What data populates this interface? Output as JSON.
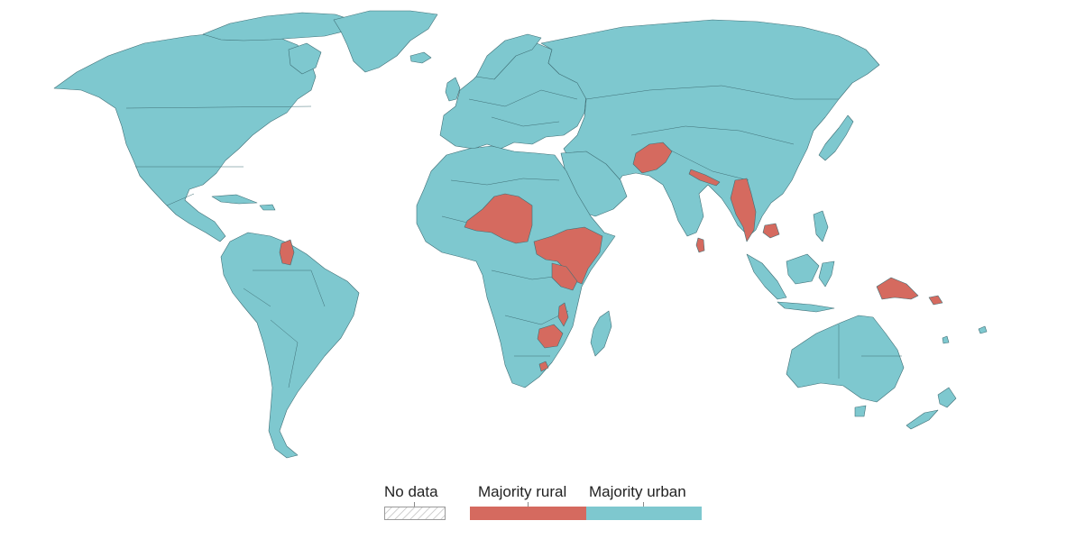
{
  "colors": {
    "majority_urban": "#7ec8cf",
    "majority_rural": "#d56a5f",
    "no_data": "hatched",
    "ocean": "#ffffff",
    "border": "#3f6f76"
  },
  "legend": {
    "no_data": "No data",
    "majority_rural": "Majority rural",
    "majority_urban": "Majority urban"
  },
  "regions": {
    "majority_urban": "land",
    "majority_rural": "highlighted countries"
  }
}
